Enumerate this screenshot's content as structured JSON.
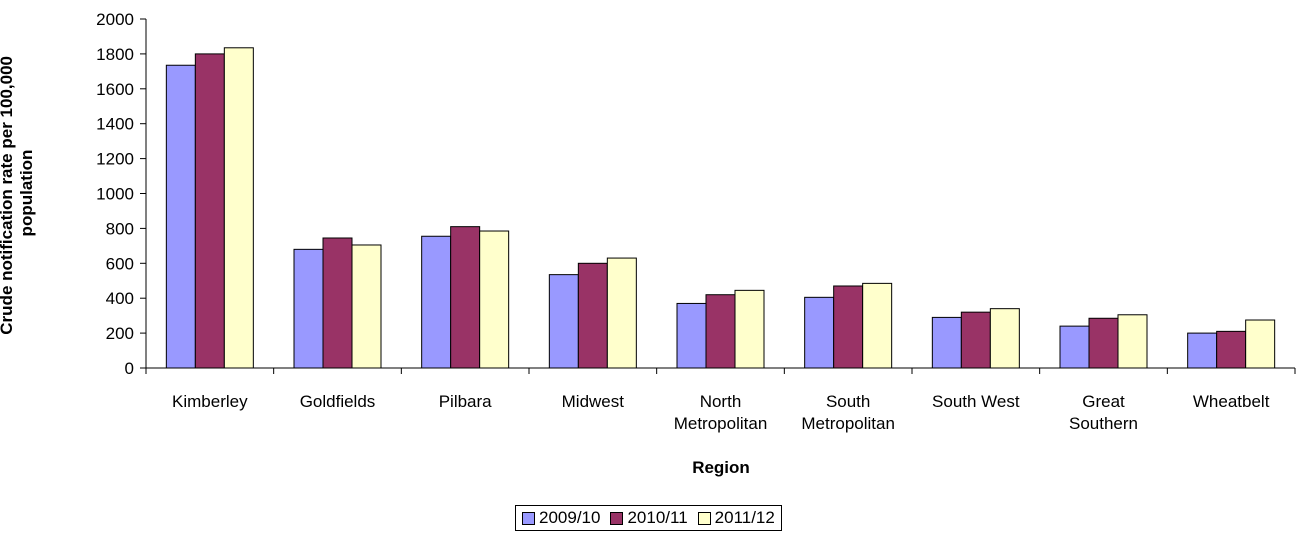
{
  "chart_data": {
    "type": "bar",
    "xlabel": "Region",
    "ylabel": "Crude notification rate per 100,000 population",
    "ylim": [
      0,
      2000
    ],
    "yticks": [
      "0",
      "200",
      "400",
      "600",
      "800",
      "1000",
      "1200",
      "1400",
      "1600",
      "1800",
      "2000"
    ],
    "categories": [
      [
        "Kimberley"
      ],
      [
        "Goldfields"
      ],
      [
        "Pilbara"
      ],
      [
        "Midwest"
      ],
      [
        "North",
        "Metropolitan"
      ],
      [
        "South",
        "Metropolitan"
      ],
      [
        "South West"
      ],
      [
        "Great",
        "Southern"
      ],
      [
        "Wheatbelt"
      ]
    ],
    "series": [
      {
        "name": "2009/10",
        "color": "#9999ff",
        "values": [
          1735,
          680,
          755,
          535,
          370,
          405,
          290,
          240,
          200
        ]
      },
      {
        "name": "2010/11",
        "color": "#993366",
        "values": [
          1800,
          745,
          810,
          600,
          420,
          470,
          320,
          285,
          210
        ]
      },
      {
        "name": "2011/12",
        "color": "#ffffcc",
        "values": [
          1835,
          705,
          785,
          630,
          445,
          485,
          340,
          305,
          275
        ]
      }
    ],
    "legend_position": "bottom",
    "grid": false
  }
}
